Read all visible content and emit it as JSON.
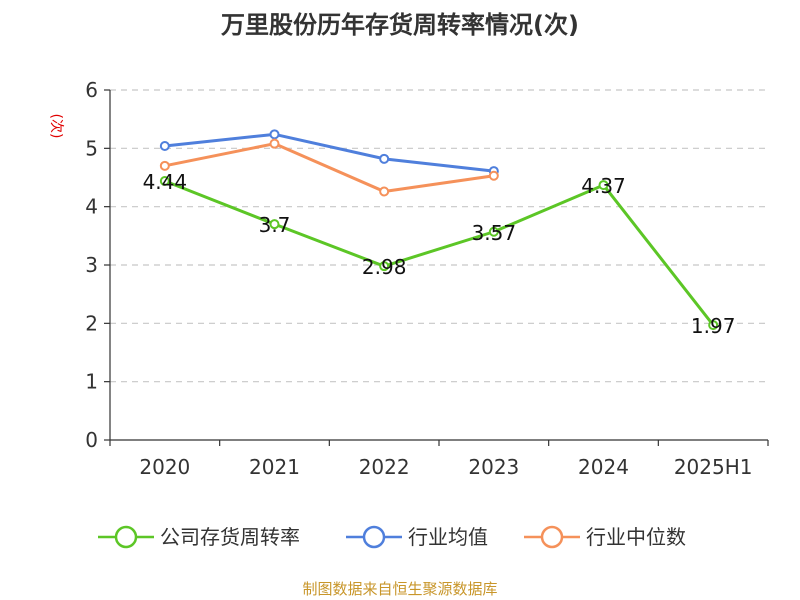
{
  "chart_data": {
    "type": "line",
    "title": "万里股份历年存货周转率情况(次)",
    "ylabel": "(次)",
    "xlabel": "",
    "categories": [
      "2020",
      "2021",
      "2022",
      "2023",
      "2024",
      "2025H1"
    ],
    "ylim": [
      0,
      6
    ],
    "yticks": [
      0,
      1,
      2,
      3,
      4,
      5,
      6
    ],
    "grid": true,
    "legend_position": "bottom",
    "series": [
      {
        "name": "公司存货周转率",
        "color": "#5cc626",
        "values": [
          4.44,
          3.7,
          2.98,
          3.57,
          4.37,
          1.97
        ],
        "data_labels": [
          "4.44",
          "3.7",
          "2.98",
          "3.57",
          "4.37",
          "1.97"
        ]
      },
      {
        "name": "行业均值",
        "color": "#4f7fdc",
        "values": [
          5.04,
          5.24,
          4.82,
          4.61,
          null,
          null
        ]
      },
      {
        "name": "行业中位数",
        "color": "#f5915a",
        "values": [
          4.7,
          5.08,
          4.26,
          4.53,
          null,
          null
        ]
      }
    ]
  },
  "source_text": "制图数据来自恒生聚源数据库"
}
